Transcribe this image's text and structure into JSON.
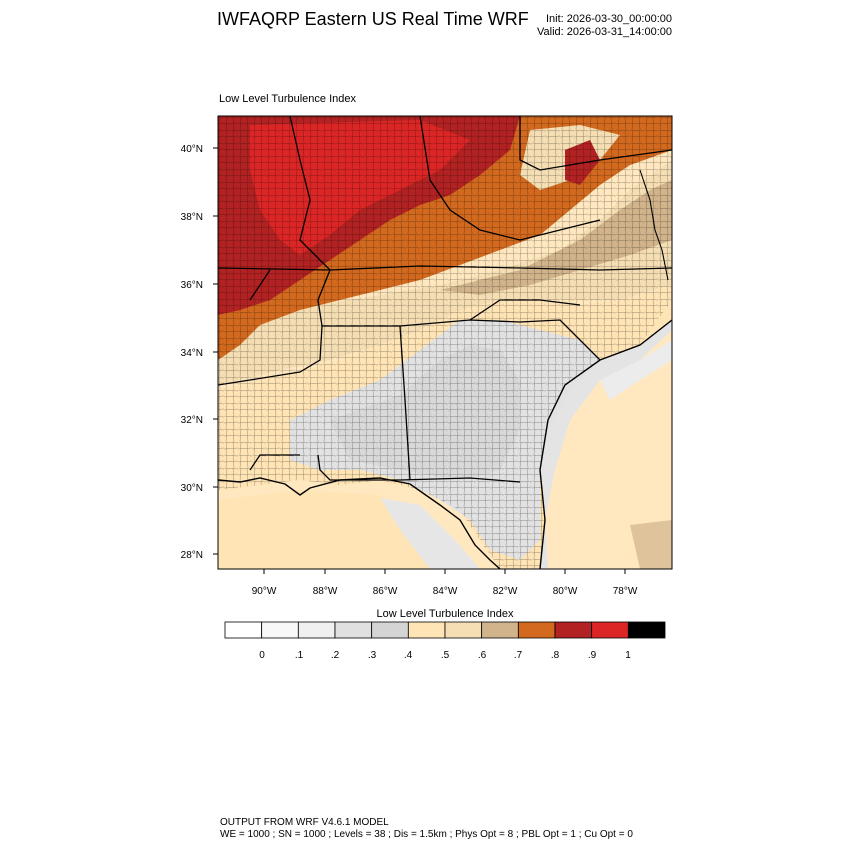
{
  "header": {
    "title": "IWFAQRP Eastern US Real Time WRF",
    "init": "Init: 2026-03-30_00:00:00",
    "valid": "Valid: 2026-03-31_14:00:00"
  },
  "panel": {
    "title": "Low Level Turbulence Index"
  },
  "axes": {
    "lat_labels": [
      "40°N",
      "38°N",
      "36°N",
      "34°N",
      "32°N",
      "30°N",
      "28°N"
    ],
    "lon_labels": [
      "90°W",
      "88°W",
      "86°W",
      "84°W",
      "82°W",
      "80°W",
      "78°W"
    ]
  },
  "colorbar": {
    "title": "Low Level Turbulence Index",
    "labels": [
      "0",
      ".1",
      ".2",
      ".3",
      ".4",
      ".5",
      ".6",
      ".7",
      ".8",
      ".9",
      "1"
    ],
    "colors": [
      "#ffffff",
      "#f8f8f8",
      "#f0f0f0",
      "#e0e0e0",
      "#d4d4d4",
      "#ffe4b5",
      "#f5deb3",
      "#d2b48c",
      "#d2691e",
      "#b22222",
      "#dc2626",
      "#000000"
    ]
  },
  "footer": {
    "line1": "OUTPUT FROM WRF V4.6.1 MODEL",
    "line2": "WE = 1000 ; SN = 1000 ; Levels = 38 ; Dis = 1.5km ; Phys Opt = 8 ; PBL Opt = 1 ; Cu Opt = 0"
  }
}
